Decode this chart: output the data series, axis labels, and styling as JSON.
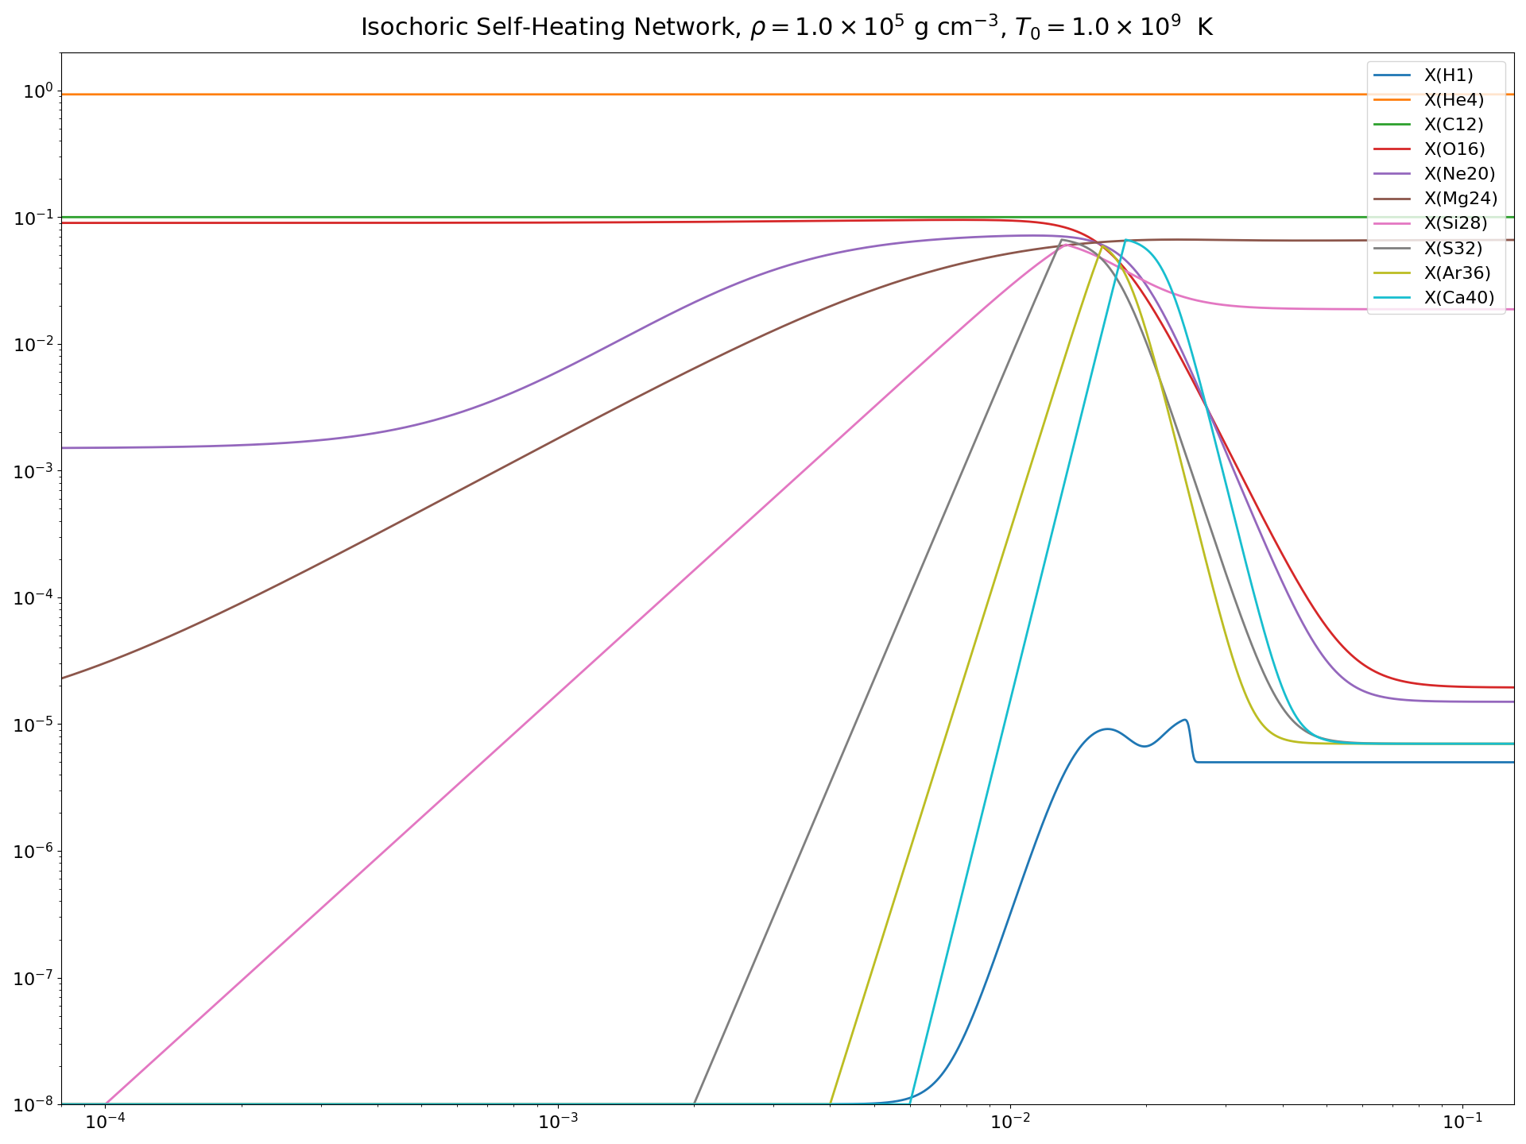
{
  "title": "Isochoric Self-Heating Network, $\\rho = 1.0 \\times 10^5$ g cm$^{-3}$, $T_0 = 1.0 \\times 10^9$  K",
  "xlim": [
    8e-05,
    0.13
  ],
  "ylim": [
    1e-08,
    2.0
  ],
  "species": [
    "X(H1)",
    "X(He4)",
    "X(C12)",
    "X(O16)",
    "X(Ne20)",
    "X(Mg24)",
    "X(Si28)",
    "X(S32)",
    "X(Ar36)",
    "X(Ca40)"
  ],
  "colors": [
    "#1f77b4",
    "#ff7f0e",
    "#2ca02c",
    "#d62728",
    "#9467bd",
    "#8c564b",
    "#e377c2",
    "#7f7f7f",
    "#bcbd22",
    "#17becf"
  ],
  "figsize": [
    19.2,
    14.4
  ],
  "dpi": 100
}
